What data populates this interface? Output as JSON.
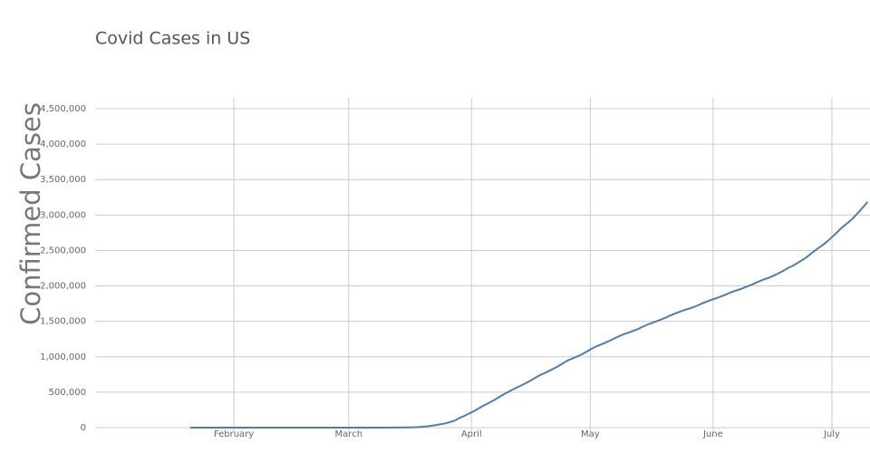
{
  "chart_data": {
    "type": "line",
    "title": "Covid Cases in US",
    "y_label": "Confirmed Cases",
    "color": "#4a7fb0",
    "grid": true,
    "categories": [
      null,
      null,
      null,
      null,
      null,
      null,
      null,
      null,
      null,
      null,
      null,
      "February",
      null,
      null,
      null,
      null,
      null,
      null,
      null,
      null,
      null,
      null,
      null,
      null,
      null,
      null,
      null,
      null,
      null,
      null,
      null,
      null,
      null,
      null,
      null,
      null,
      null,
      null,
      null,
      null,
      "March",
      null,
      null,
      null,
      null,
      null,
      null,
      null,
      null,
      null,
      null,
      null,
      null,
      null,
      null,
      null,
      null,
      null,
      null,
      null,
      null,
      null,
      null,
      null,
      null,
      null,
      null,
      null,
      null,
      null,
      null,
      "April",
      null,
      null,
      null,
      null,
      null,
      null,
      null,
      null,
      null,
      null,
      null,
      null,
      null,
      null,
      null,
      null,
      null,
      null,
      null,
      null,
      null,
      null,
      null,
      null,
      null,
      null,
      null,
      null,
      null,
      "May",
      null,
      null,
      null,
      null,
      null,
      null,
      null,
      null,
      null,
      null,
      null,
      null,
      null,
      null,
      null,
      null,
      null,
      null,
      null,
      null,
      null,
      null,
      null,
      null,
      null,
      null,
      null,
      null,
      null,
      null,
      "June",
      null,
      null,
      null,
      null,
      null,
      null,
      null,
      null,
      null,
      null,
      null,
      null,
      null,
      null,
      null,
      null,
      null,
      null,
      null,
      null,
      null,
      null,
      null,
      null,
      null,
      null,
      null,
      null,
      null,
      "July",
      null,
      null,
      null,
      null,
      null,
      null,
      null,
      null,
      null
    ],
    "values": [
      1,
      1,
      1,
      2,
      3,
      5,
      5,
      5,
      5,
      6,
      7,
      8,
      8,
      11,
      11,
      11,
      12,
      12,
      12,
      12,
      12,
      13,
      13,
      14,
      14,
      15,
      15,
      15,
      15,
      15,
      15,
      15,
      15,
      15,
      15,
      15,
      15,
      15,
      16,
      24,
      30,
      53,
      73,
      104,
      174,
      221,
      338,
      433,
      554,
      754,
      1025,
      1312,
      1663,
      2174,
      2951,
      3774,
      4661,
      6427,
      9415,
      14250,
      19624,
      26747,
      35206,
      46442,
      55231,
      69194,
      85991,
      104686,
      138000,
      160000,
      188000,
      215000,
      245000,
      278000,
      310000,
      337000,
      367000,
      398000,
      432000,
      465000,
      496000,
      526000,
      555000,
      580000,
      607000,
      636000,
      667000,
      700000,
      732000,
      759000,
      784000,
      811000,
      840000,
      869000,
      905000,
      939000,
      965000,
      988000,
      1012000,
      1039000,
      1069000,
      1103000,
      1133000,
      1158000,
      1180000,
      1204000,
      1229000,
      1257000,
      1283000,
      1309000,
      1329000,
      1347000,
      1369000,
      1390000,
      1417000,
      1443000,
      1467000,
      1486000,
      1508000,
      1528000,
      1551000,
      1577000,
      1601000,
      1622000,
      1643000,
      1662000,
      1681000,
      1699000,
      1721000,
      1747000,
      1770000,
      1790000,
      1811000,
      1831000,
      1851000,
      1872000,
      1897000,
      1920000,
      1938000,
      1956000,
      1979000,
      2000000,
      2023000,
      2048000,
      2074000,
      2094000,
      2114000,
      2137000,
      2163000,
      2191000,
      2222000,
      2255000,
      2280000,
      2312000,
      2347000,
      2381000,
      2422000,
      2467000,
      2510000,
      2549000,
      2590000,
      2636000,
      2687000,
      2739000,
      2795000,
      2845000,
      2889000,
      2937000,
      2996000,
      3055000,
      3118000,
      3185000
    ],
    "ylim": [
      0,
      4500000
    ],
    "yticks": [
      0,
      {
        "value": 500000,
        "label": "500,000"
      },
      {
        "value": 1000000,
        "label": "1,000,000"
      },
      {
        "value": 1500000,
        "label": "1,500,000"
      },
      {
        "value": 2000000,
        "label": "2,000,000"
      },
      {
        "value": 2500000,
        "label": "2,500,000"
      },
      {
        "value": 3000000,
        "label": "3,000,000"
      },
      {
        "value": 3500000,
        "label": "3,500,000"
      },
      {
        "value": 4000000,
        "label": "4,000,000"
      },
      {
        "value": 4500000,
        "label": "4,500,000"
      }
    ]
  }
}
